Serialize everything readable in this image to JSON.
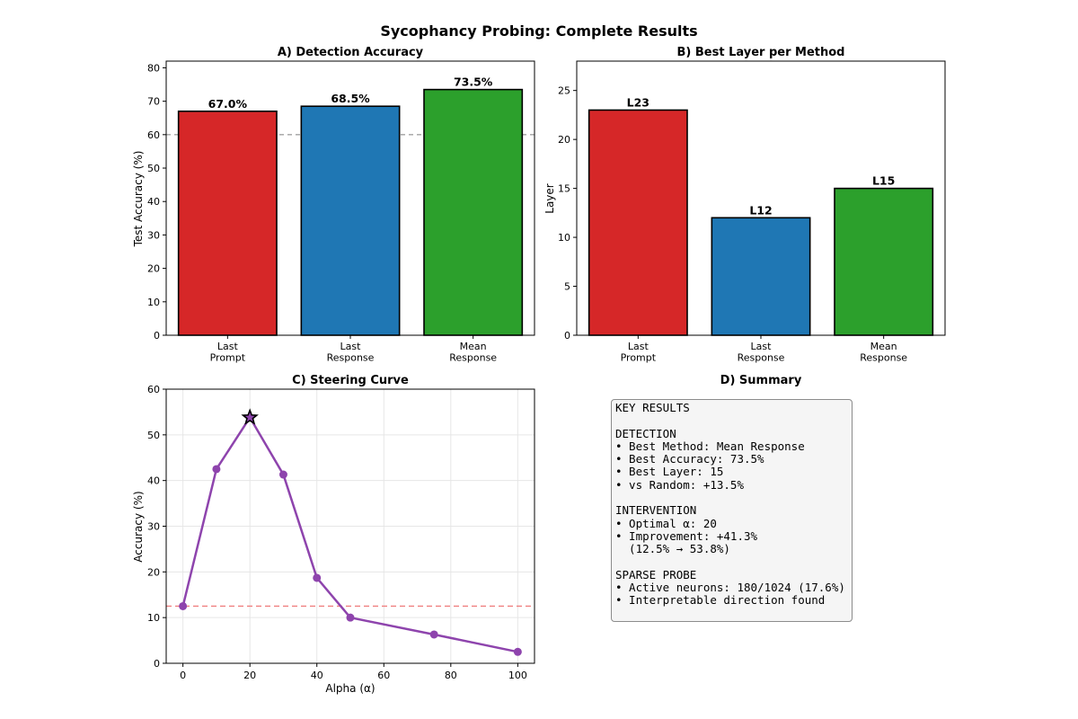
{
  "suptitle": "Sycophancy Probing: Complete Results",
  "colors": {
    "red": "#d62728",
    "blue": "#1f77b4",
    "green": "#2ca02c",
    "purple": "#8e44ad",
    "ref_gray": "#a0a0a0",
    "ref_red": "#f08080"
  },
  "chart_data": [
    {
      "panel": "A",
      "type": "bar",
      "title": "A) Detection Accuracy",
      "xlabel": "",
      "ylabel": "Test Accuracy (%)",
      "categories": [
        "Last\nPrompt",
        "Last\nResponse",
        "Mean\nResponse"
      ],
      "values": [
        67.0,
        68.5,
        73.5
      ],
      "data_labels": [
        "67.0%",
        "68.5%",
        "73.5%"
      ],
      "bar_colors": [
        "#d62728",
        "#1f77b4",
        "#2ca02c"
      ],
      "ylim": [
        0,
        82
      ],
      "yticks": [
        0,
        10,
        20,
        30,
        40,
        50,
        60,
        70,
        80
      ],
      "reference_line": {
        "y": 60,
        "style": "dashed",
        "color": "#a0a0a0"
      },
      "grid": false,
      "legend": "none"
    },
    {
      "panel": "B",
      "type": "bar",
      "title": "B) Best Layer per Method",
      "xlabel": "",
      "ylabel": "Layer",
      "categories": [
        "Last\nPrompt",
        "Last\nResponse",
        "Mean\nResponse"
      ],
      "values": [
        23,
        12,
        15
      ],
      "data_labels": [
        "L23",
        "L12",
        "L15"
      ],
      "bar_colors": [
        "#d62728",
        "#1f77b4",
        "#2ca02c"
      ],
      "ylim": [
        0,
        28
      ],
      "yticks": [
        0,
        5,
        10,
        15,
        20,
        25
      ],
      "grid": false,
      "legend": "none"
    },
    {
      "panel": "C",
      "type": "line",
      "title": "C) Steering Curve",
      "xlabel": "Alpha (α)",
      "ylabel": "Accuracy (%)",
      "x": [
        0,
        10,
        20,
        30,
        40,
        50,
        75,
        100
      ],
      "y": [
        12.5,
        42.5,
        53.8,
        41.3,
        18.7,
        10.0,
        6.3,
        2.5
      ],
      "line_color": "#8e44ad",
      "xlim": [
        -5,
        105
      ],
      "ylim": [
        0,
        60
      ],
      "xticks": [
        0,
        20,
        40,
        60,
        80,
        100
      ],
      "yticks": [
        0,
        10,
        20,
        30,
        40,
        50,
        60
      ],
      "highlight": {
        "x": 20,
        "y": 53.8,
        "marker": "star"
      },
      "reference_line": {
        "y": 12.5,
        "style": "dashed",
        "color": "#f08080"
      },
      "grid": true,
      "legend": "none"
    }
  ],
  "summary": {
    "title": "D) Summary",
    "text": "KEY RESULTS\n\nDETECTION\n• Best Method: Mean Response\n• Best Accuracy: 73.5%\n• Best Layer: 15\n• vs Random: +13.5%\n\nINTERVENTION\n• Optimal α: 20\n• Improvement: +41.3%\n  (12.5% → 53.8%)\n\nSPARSE PROBE\n• Active neurons: 180/1024 (17.6%)\n• Interpretable direction found"
  }
}
